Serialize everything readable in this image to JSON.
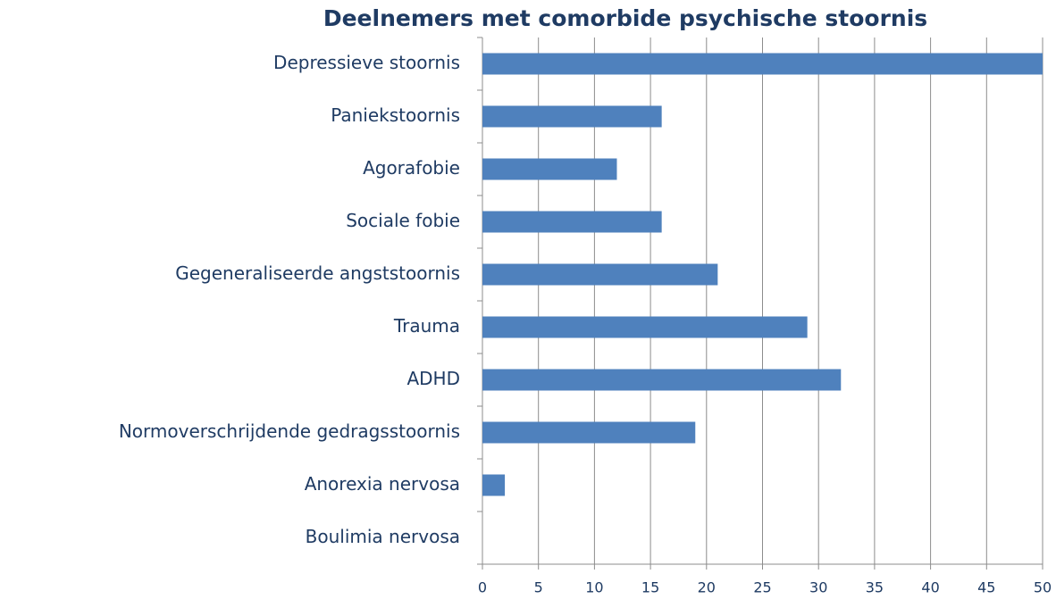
{
  "chart_data": {
    "type": "bar",
    "orientation": "horizontal",
    "title": "Deelnemers met comorbide psychische stoornis",
    "categories": [
      "Depressieve stoornis",
      "Paniekstoornis",
      "Agorafobie",
      "Sociale fobie",
      "Gegeneraliseerde angststoornis",
      "Trauma",
      "ADHD",
      "Normoverschrijdende gedragsstoornis",
      "Anorexia nervosa",
      "Boulimia nervosa"
    ],
    "values": [
      50,
      16,
      12,
      16,
      21,
      29,
      32,
      19,
      2,
      0
    ],
    "color": "#4f81bd",
    "xlim": [
      0,
      50
    ],
    "xticks": [
      0,
      5,
      10,
      15,
      20,
      25,
      30,
      35,
      40,
      45,
      50
    ],
    "grid": true
  }
}
